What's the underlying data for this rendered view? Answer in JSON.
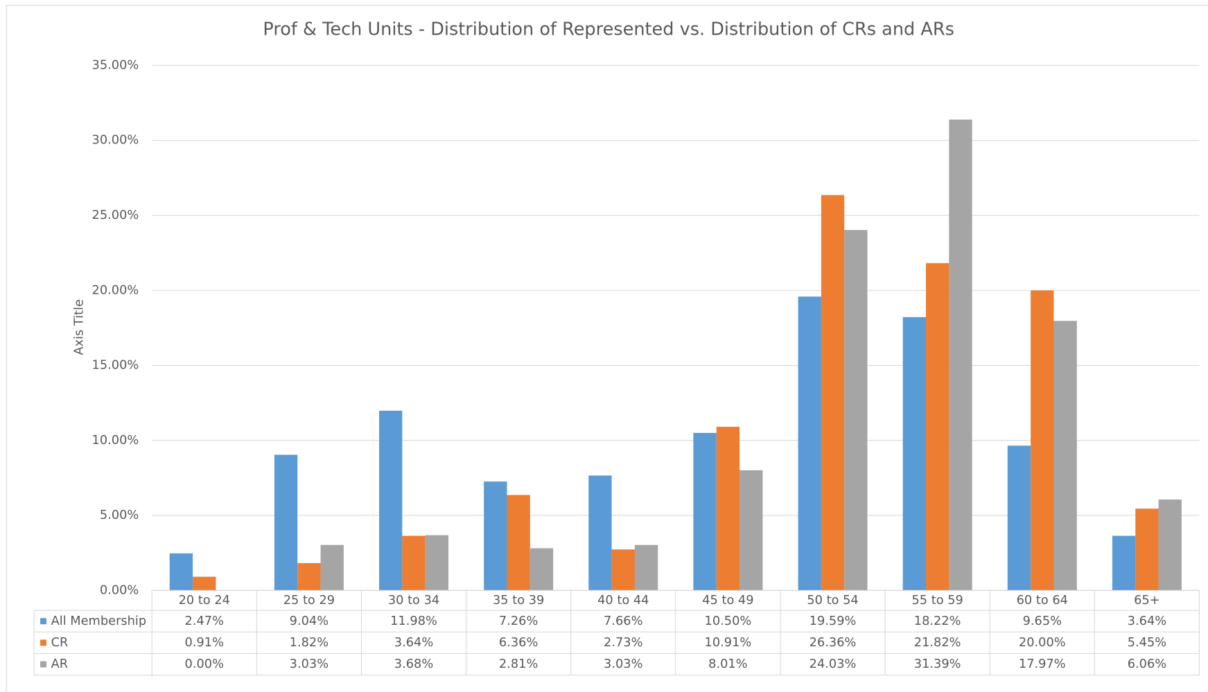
{
  "chart_data": {
    "type": "bar",
    "title": "Prof & Tech Units - Distribution of Represented vs. Distribution of CRs and ARs",
    "y_axis_label": "Axis Title",
    "categories": [
      "20 to 24",
      "25 to 29",
      "30 to 34",
      "35 to 39",
      "40 to 44",
      "45 to 49",
      "50 to 54",
      "55 to 59",
      "60 to 64",
      "65+"
    ],
    "series": [
      {
        "name": "All Membership",
        "color": "#5b9bd5",
        "values": [
          2.47,
          9.04,
          11.98,
          7.26,
          7.66,
          10.5,
          19.59,
          18.22,
          9.65,
          3.64
        ],
        "value_labels": [
          "2.47%",
          "9.04%",
          "11.98%",
          "7.26%",
          "7.66%",
          "10.50%",
          "19.59%",
          "18.22%",
          "9.65%",
          "3.64%"
        ]
      },
      {
        "name": "CR",
        "color": "#ed7d31",
        "values": [
          0.91,
          1.82,
          3.64,
          6.36,
          2.73,
          10.91,
          26.36,
          21.82,
          20.0,
          5.45
        ],
        "value_labels": [
          "0.91%",
          "1.82%",
          "3.64%",
          "6.36%",
          "2.73%",
          "10.91%",
          "26.36%",
          "21.82%",
          "20.00%",
          "5.45%"
        ]
      },
      {
        "name": "AR",
        "color": "#a5a5a5",
        "values": [
          0.0,
          3.03,
          3.68,
          2.81,
          3.03,
          8.01,
          24.03,
          31.39,
          17.97,
          6.06
        ],
        "value_labels": [
          "0.00%",
          "3.03%",
          "3.68%",
          "2.81%",
          "3.03%",
          "8.01%",
          "24.03%",
          "31.39%",
          "17.97%",
          "6.06%"
        ]
      }
    ],
    "ylim": [
      0,
      35
    ],
    "yticks": [
      {
        "value": 0,
        "label": "0.00%"
      },
      {
        "value": 5,
        "label": "5.00%"
      },
      {
        "value": 10,
        "label": "10.00%"
      },
      {
        "value": 15,
        "label": "15.00%"
      },
      {
        "value": 20,
        "label": "20.00%"
      },
      {
        "value": 25,
        "label": "25.00%"
      },
      {
        "value": 30,
        "label": "30.00%"
      },
      {
        "value": 35,
        "label": "35.00%"
      }
    ],
    "grid": true
  }
}
